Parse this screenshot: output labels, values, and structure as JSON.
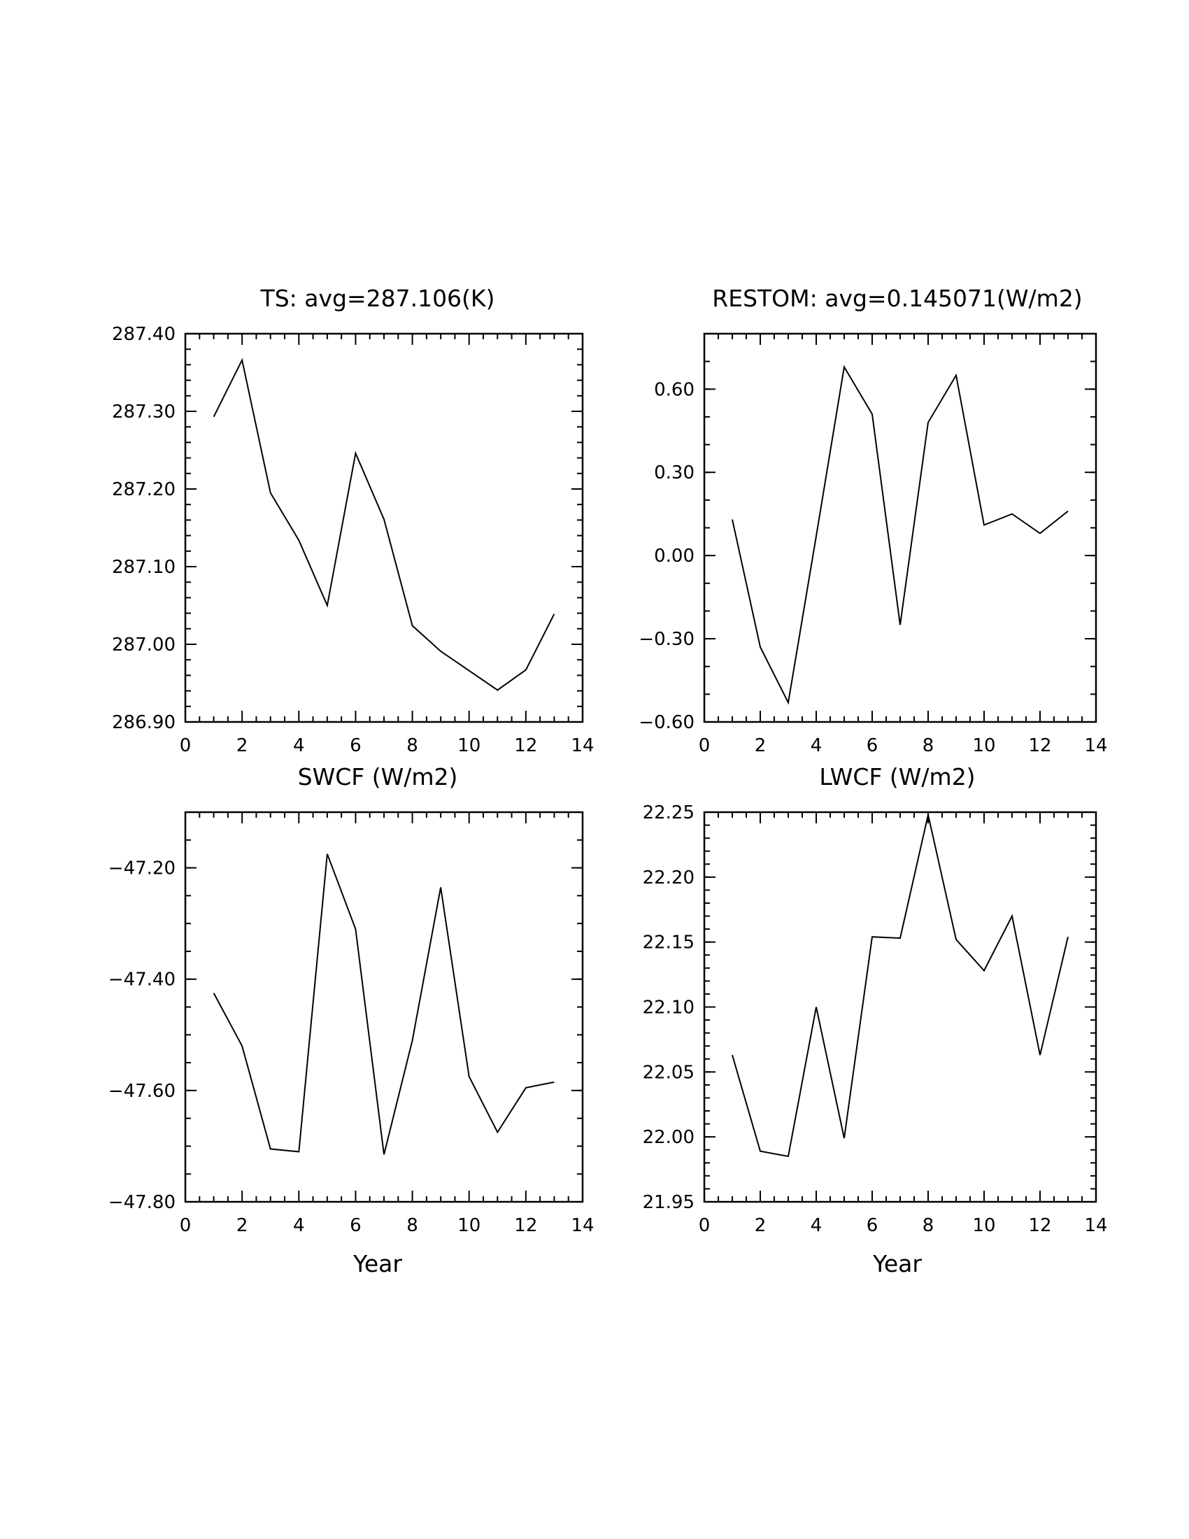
{
  "chart_data": [
    {
      "type": "line",
      "title": "TS: avg=287.106(K)",
      "xlabel": "",
      "ylabel": "",
      "xlim": [
        0,
        14
      ],
      "ylim": [
        286.9,
        287.4
      ],
      "xticks": [
        "0",
        "2",
        "4",
        "6",
        "8",
        "10",
        "12",
        "14"
      ],
      "yticks": [
        "287.40",
        "287.30",
        "287.20",
        "287.10",
        "287.00",
        "286.90"
      ],
      "grid": false,
      "x": [
        1,
        2,
        3,
        4,
        5,
        6,
        7,
        8,
        9,
        10,
        11,
        12,
        13
      ],
      "values": [
        287.293,
        287.366,
        287.195,
        287.134,
        287.05,
        287.246,
        287.161,
        287.024,
        286.991,
        286.966,
        286.941,
        286.967,
        287.039
      ]
    },
    {
      "type": "line",
      "title": "RESTOM: avg=0.145071(W/m2)",
      "xlabel": "",
      "ylabel": "",
      "xlim": [
        0,
        14
      ],
      "ylim": [
        -0.6,
        0.8
      ],
      "xticks": [
        "0",
        "2",
        "4",
        "6",
        "8",
        "10",
        "12",
        "14"
      ],
      "yticks": [
        "0.60",
        "0.30",
        "0.00",
        "−0.30",
        "−0.60"
      ],
      "grid": false,
      "x": [
        1,
        2,
        3,
        4,
        5,
        6,
        7,
        8,
        9,
        10,
        11,
        12,
        13
      ],
      "values": [
        0.13,
        -0.33,
        -0.53,
        0.07,
        0.68,
        0.51,
        -0.25,
        0.48,
        0.65,
        0.11,
        0.15,
        0.08,
        0.16
      ]
    },
    {
      "type": "line",
      "title": "SWCF (W/m2)",
      "xlabel": "Year",
      "ylabel": "",
      "xlim": [
        0,
        14
      ],
      "ylim": [
        -47.8,
        -47.1
      ],
      "xticks": [
        "0",
        "2",
        "4",
        "6",
        "8",
        "10",
        "12",
        "14"
      ],
      "yticks": [
        "−47.20",
        "−47.40",
        "−47.60",
        "−47.80"
      ],
      "grid": false,
      "x": [
        1,
        2,
        3,
        4,
        5,
        6,
        7,
        8,
        9,
        10,
        11,
        12,
        13
      ],
      "values": [
        -47.425,
        -47.52,
        -47.705,
        -47.71,
        -47.175,
        -47.31,
        -47.715,
        -47.51,
        -47.235,
        -47.575,
        -47.675,
        -47.595,
        -47.585
      ]
    },
    {
      "type": "line",
      "title": "LWCF (W/m2)",
      "xlabel": "Year",
      "ylabel": "",
      "xlim": [
        0,
        14
      ],
      "ylim": [
        21.95,
        22.25
      ],
      "xticks": [
        "0",
        "2",
        "4",
        "6",
        "8",
        "10",
        "12",
        "14"
      ],
      "yticks": [
        "22.25",
        "22.20",
        "22.15",
        "22.10",
        "22.05",
        "22.00",
        "21.95"
      ],
      "grid": false,
      "x": [
        1,
        2,
        3,
        4,
        5,
        6,
        7,
        8,
        9,
        10,
        11,
        12,
        13
      ],
      "values": [
        22.063,
        21.989,
        21.985,
        22.1,
        21.999,
        22.154,
        22.153,
        22.248,
        22.152,
        22.128,
        22.17,
        22.063,
        22.154
      ]
    }
  ]
}
